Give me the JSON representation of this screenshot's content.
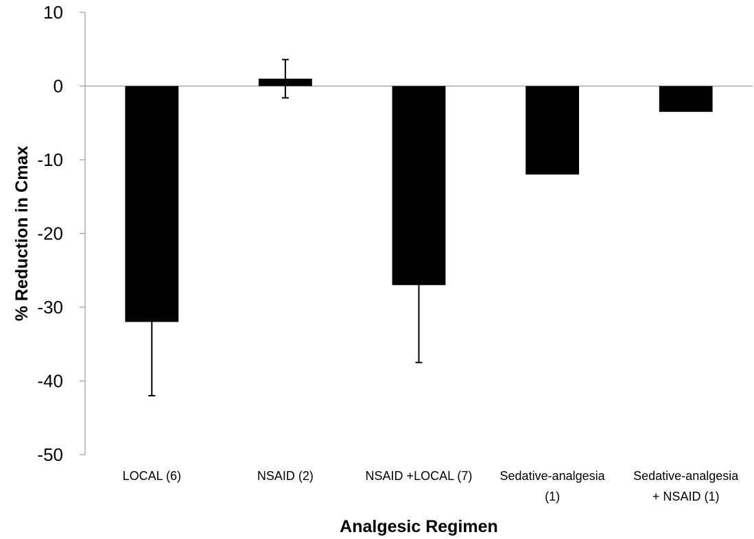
{
  "chart_data": {
    "type": "bar",
    "categories": [
      [
        "LOCAL (6)"
      ],
      [
        "NSAID (2)"
      ],
      [
        "NSAID +LOCAL (7)"
      ],
      [
        "Sedative-analgesia",
        "(1)"
      ],
      [
        "Sedative-analgesia",
        "+ NSAID (1)"
      ]
    ],
    "values": [
      -32,
      1,
      -27,
      -12,
      -3.5
    ],
    "error_bars": [
      10,
      2.6,
      10.5,
      null,
      null
    ],
    "xlabel": "Analgesic Regimen",
    "ylabel": "% Reduction in Cmax",
    "ylim": [
      -50,
      10
    ],
    "yticks": [
      10,
      0,
      -10,
      -20,
      -30,
      -40,
      -50
    ],
    "bar_color": "#000000",
    "grid": false,
    "legend": "none"
  }
}
